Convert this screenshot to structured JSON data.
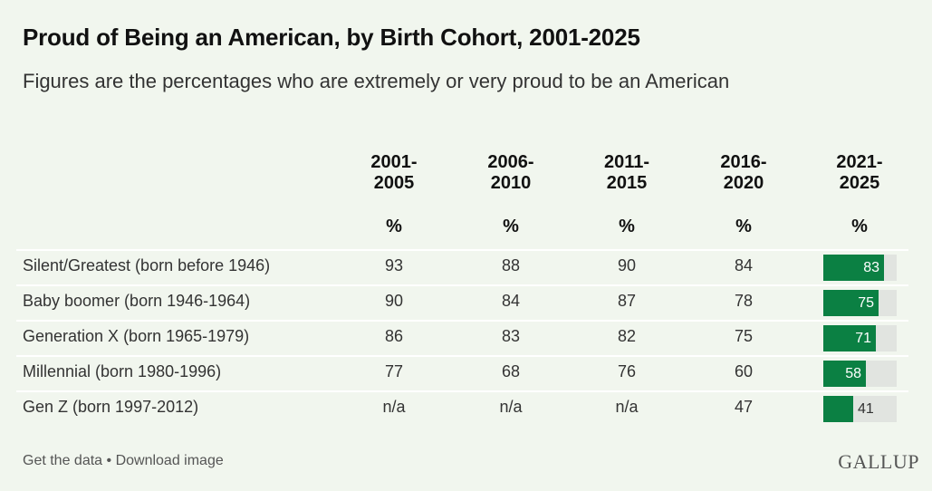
{
  "title": "Proud of Being an American, by Birth Cohort, 2001-2025",
  "subtitle": "Figures are the percentages who are extremely or very proud to be an American",
  "columns": [
    {
      "line1": "2001-",
      "line2": "2005",
      "unit": "%"
    },
    {
      "line1": "2006-",
      "line2": "2010",
      "unit": "%"
    },
    {
      "line1": "2011-",
      "line2": "2015",
      "unit": "%"
    },
    {
      "line1": "2016-",
      "line2": "2020",
      "unit": "%"
    },
    {
      "line1": "2021-",
      "line2": "2025",
      "unit": "%"
    }
  ],
  "rows": [
    {
      "label": "Silent/Greatest (born before 1946)",
      "cells": [
        "93",
        "88",
        "90",
        "84"
      ],
      "latest": "83"
    },
    {
      "label": "Baby boomer (born 1946-1964)",
      "cells": [
        "90",
        "84",
        "87",
        "78"
      ],
      "latest": "75"
    },
    {
      "label": "Generation X (born 1965-1979)",
      "cells": [
        "86",
        "83",
        "82",
        "75"
      ],
      "latest": "71"
    },
    {
      "label": "Millennial (born 1980-1996)",
      "cells": [
        "77",
        "68",
        "76",
        "60"
      ],
      "latest": "58"
    },
    {
      "label": "Gen Z (born 1997-2012)",
      "cells": [
        "n/a",
        "n/a",
        "n/a",
        "47"
      ],
      "latest": "41"
    }
  ],
  "footer": {
    "get_data": "Get the data",
    "separator": " • ",
    "download": "Download image"
  },
  "logo": "GALLUP",
  "colors": {
    "bar": "#0b8043",
    "track": "#e1e4e0",
    "background": "#f1f6ee"
  },
  "chart_data": {
    "type": "table",
    "title": "Proud of Being an American, by Birth Cohort, 2001-2025",
    "subtitle": "Figures are the percentages who are extremely or very proud to be an American",
    "columns": [
      "2001-2005",
      "2006-2010",
      "2011-2015",
      "2016-2020",
      "2021-2025"
    ],
    "unit": "%",
    "series": [
      {
        "name": "Silent/Greatest (born before 1946)",
        "values": [
          93,
          88,
          90,
          84,
          83
        ]
      },
      {
        "name": "Baby boomer (born 1946-1964)",
        "values": [
          90,
          84,
          87,
          78,
          75
        ]
      },
      {
        "name": "Generation X (born 1965-1979)",
        "values": [
          86,
          83,
          82,
          75,
          71
        ]
      },
      {
        "name": "Millennial (born 1980-1996)",
        "values": [
          77,
          68,
          76,
          60,
          58
        ]
      },
      {
        "name": "Gen Z (born 1997-2012)",
        "values": [
          null,
          null,
          null,
          47,
          41
        ]
      }
    ],
    "bar_column": "2021-2025",
    "bar_range": [
      0,
      100
    ]
  }
}
